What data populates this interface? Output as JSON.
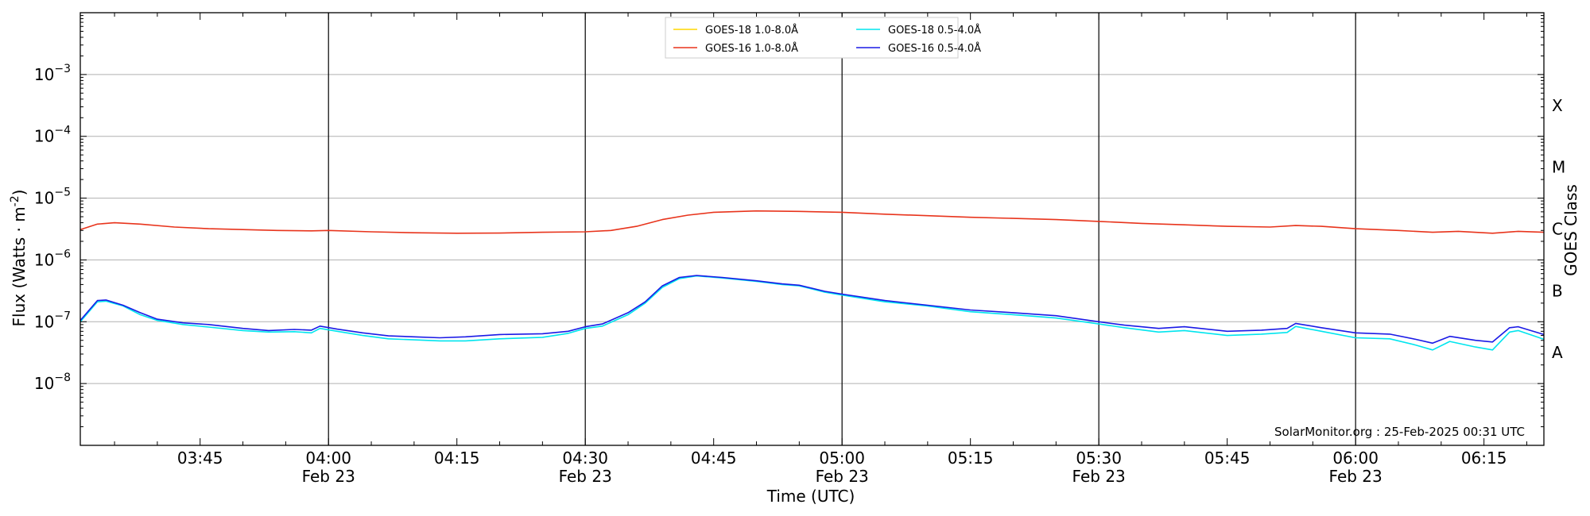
{
  "chart_data": {
    "type": "line",
    "xlabel": "Time (UTC)",
    "ylabel": "Flux (Watts · m",
    "ylabel_sup": "-2",
    "ylabel_end": ")",
    "y2label": "GOES Class",
    "yscale": "log",
    "ylim": [
      1e-09,
      0.01
    ],
    "xlim": [
      "03:31",
      "06:22"
    ],
    "x_ticks": [
      {
        "value": "03:45",
        "label": "03:45",
        "sublabel": ""
      },
      {
        "value": "04:00",
        "label": "04:00",
        "sublabel": "Feb 23"
      },
      {
        "value": "04:15",
        "label": "04:15",
        "sublabel": ""
      },
      {
        "value": "04:30",
        "label": "04:30",
        "sublabel": "Feb 23"
      },
      {
        "value": "04:45",
        "label": "04:45",
        "sublabel": ""
      },
      {
        "value": "05:00",
        "label": "05:00",
        "sublabel": "Feb 23"
      },
      {
        "value": "05:15",
        "label": "05:15",
        "sublabel": ""
      },
      {
        "value": "05:30",
        "label": "05:30",
        "sublabel": "Feb 23"
      },
      {
        "value": "05:45",
        "label": "05:45",
        "sublabel": ""
      },
      {
        "value": "06:00",
        "label": "06:00",
        "sublabel": "Feb 23"
      },
      {
        "value": "06:15",
        "label": "06:15",
        "sublabel": ""
      }
    ],
    "y_ticks": [
      {
        "value": 1e-08,
        "base": "10",
        "exp": "−8"
      },
      {
        "value": 1e-07,
        "base": "10",
        "exp": "−7"
      },
      {
        "value": 1e-06,
        "base": "10",
        "exp": "−6"
      },
      {
        "value": 1e-05,
        "base": "10",
        "exp": "−5"
      },
      {
        "value": 0.0001,
        "base": "10",
        "exp": "−4"
      },
      {
        "value": 0.001,
        "base": "10",
        "exp": "−3"
      }
    ],
    "class_labels": [
      {
        "label": "A",
        "value": 3.16e-08
      },
      {
        "label": "B",
        "value": 3.16e-07
      },
      {
        "label": "C",
        "value": 3.16e-06
      },
      {
        "label": "M",
        "value": 3.16e-05
      },
      {
        "label": "X",
        "value": 0.000316
      }
    ],
    "grid": {
      "horizontal": true,
      "vertical_major": [
        "04:00",
        "04:30",
        "05:00",
        "05:30",
        "06:00"
      ]
    },
    "legend_position": "top-center",
    "annotation": "SolarMonitor.org : 25-Feb-2025 00:31 UTC",
    "series": [
      {
        "name": "GOES-18 1.0-8.0Å",
        "color": "#ffd700",
        "points": []
      },
      {
        "name": "GOES-16 1.0-8.0Å",
        "color": "#e8341c",
        "points": [
          [
            "03:31",
            3.1e-06
          ],
          [
            "03:33",
            3.8e-06
          ],
          [
            "03:35",
            4e-06
          ],
          [
            "03:38",
            3.8e-06
          ],
          [
            "03:42",
            3.4e-06
          ],
          [
            "03:46",
            3.2e-06
          ],
          [
            "03:50",
            3.1e-06
          ],
          [
            "03:54",
            3e-06
          ],
          [
            "03:58",
            2.95e-06
          ],
          [
            "04:00",
            3e-06
          ],
          [
            "04:05",
            2.85e-06
          ],
          [
            "04:10",
            2.75e-06
          ],
          [
            "04:15",
            2.7e-06
          ],
          [
            "04:20",
            2.72e-06
          ],
          [
            "04:25",
            2.8e-06
          ],
          [
            "04:30",
            2.85e-06
          ],
          [
            "04:33",
            3e-06
          ],
          [
            "04:36",
            3.5e-06
          ],
          [
            "04:39",
            4.5e-06
          ],
          [
            "04:42",
            5.3e-06
          ],
          [
            "04:45",
            5.9e-06
          ],
          [
            "04:50",
            6.2e-06
          ],
          [
            "04:55",
            6.1e-06
          ],
          [
            "05:00",
            5.9e-06
          ],
          [
            "05:05",
            5.5e-06
          ],
          [
            "05:10",
            5.2e-06
          ],
          [
            "05:15",
            4.9e-06
          ],
          [
            "05:20",
            4.7e-06
          ],
          [
            "05:25",
            4.5e-06
          ],
          [
            "05:30",
            4.2e-06
          ],
          [
            "05:35",
            3.9e-06
          ],
          [
            "05:40",
            3.7e-06
          ],
          [
            "05:45",
            3.5e-06
          ],
          [
            "05:50",
            3.4e-06
          ],
          [
            "05:53",
            3.6e-06
          ],
          [
            "05:56",
            3.5e-06
          ],
          [
            "06:00",
            3.2e-06
          ],
          [
            "06:05",
            3e-06
          ],
          [
            "06:09",
            2.8e-06
          ],
          [
            "06:12",
            2.9e-06
          ],
          [
            "06:16",
            2.7e-06
          ],
          [
            "06:19",
            2.9e-06
          ],
          [
            "06:22",
            2.8e-06
          ]
        ]
      },
      {
        "name": "GOES-18 0.5-4.0Å",
        "color": "#00e5ee",
        "points": [
          [
            "03:31",
            1e-07
          ],
          [
            "03:33",
            2.1e-07
          ],
          [
            "03:34",
            2.15e-07
          ],
          [
            "03:36",
            1.8e-07
          ],
          [
            "03:38",
            1.3e-07
          ],
          [
            "03:40",
            1.05e-07
          ],
          [
            "03:43",
            9e-08
          ],
          [
            "03:46",
            8.2e-08
          ],
          [
            "03:50",
            7.2e-08
          ],
          [
            "03:53",
            6.8e-08
          ],
          [
            "03:56",
            6.9e-08
          ],
          [
            "03:58",
            6.6e-08
          ],
          [
            "03:59",
            7.8e-08
          ],
          [
            "04:01",
            7e-08
          ],
          [
            "04:04",
            6e-08
          ],
          [
            "04:07",
            5.3e-08
          ],
          [
            "04:10",
            5.1e-08
          ],
          [
            "04:13",
            4.9e-08
          ],
          [
            "04:16",
            4.9e-08
          ],
          [
            "04:20",
            5.3e-08
          ],
          [
            "04:25",
            5.6e-08
          ],
          [
            "04:28",
            6.5e-08
          ],
          [
            "04:30",
            7.8e-08
          ],
          [
            "04:32",
            8.5e-08
          ],
          [
            "04:35",
            1.3e-07
          ],
          [
            "04:37",
            2e-07
          ],
          [
            "04:39",
            3.6e-07
          ],
          [
            "04:41",
            5e-07
          ],
          [
            "04:43",
            5.5e-07
          ],
          [
            "04:46",
            5.1e-07
          ],
          [
            "04:50",
            4.5e-07
          ],
          [
            "04:53",
            4e-07
          ],
          [
            "04:55",
            3.8e-07
          ],
          [
            "04:58",
            3e-07
          ],
          [
            "05:00",
            2.7e-07
          ],
          [
            "05:05",
            2.1e-07
          ],
          [
            "05:10",
            1.8e-07
          ],
          [
            "05:15",
            1.45e-07
          ],
          [
            "05:20",
            1.3e-07
          ],
          [
            "05:25",
            1.15e-07
          ],
          [
            "05:30",
            9.2e-08
          ],
          [
            "05:33",
            8e-08
          ],
          [
            "05:37",
            6.8e-08
          ],
          [
            "05:40",
            7.2e-08
          ],
          [
            "05:45",
            6e-08
          ],
          [
            "05:49",
            6.3e-08
          ],
          [
            "05:52",
            6.7e-08
          ],
          [
            "05:53",
            8.4e-08
          ],
          [
            "05:56",
            7e-08
          ],
          [
            "06:00",
            5.5e-08
          ],
          [
            "06:04",
            5.3e-08
          ],
          [
            "06:07",
            4.2e-08
          ],
          [
            "06:09",
            3.5e-08
          ],
          [
            "06:11",
            4.8e-08
          ],
          [
            "06:14",
            3.9e-08
          ],
          [
            "06:16",
            3.5e-08
          ],
          [
            "06:18",
            6.8e-08
          ],
          [
            "06:19",
            7.2e-08
          ],
          [
            "06:22",
            5.2e-08
          ]
        ]
      },
      {
        "name": "GOES-16 0.5-4.0Å",
        "color": "#1a1ae6",
        "points": [
          [
            "03:31",
            1.05e-07
          ],
          [
            "03:33",
            2.2e-07
          ],
          [
            "03:34",
            2.25e-07
          ],
          [
            "03:36",
            1.85e-07
          ],
          [
            "03:38",
            1.4e-07
          ],
          [
            "03:40",
            1.1e-07
          ],
          [
            "03:43",
            9.6e-08
          ],
          [
            "03:46",
            9e-08
          ],
          [
            "03:50",
            7.8e-08
          ],
          [
            "03:53",
            7.2e-08
          ],
          [
            "03:56",
            7.5e-08
          ],
          [
            "03:58",
            7.3e-08
          ],
          [
            "03:59",
            8.5e-08
          ],
          [
            "04:01",
            7.6e-08
          ],
          [
            "04:04",
            6.6e-08
          ],
          [
            "04:07",
            5.9e-08
          ],
          [
            "04:10",
            5.7e-08
          ],
          [
            "04:13",
            5.5e-08
          ],
          [
            "04:16",
            5.7e-08
          ],
          [
            "04:20",
            6.2e-08
          ],
          [
            "04:25",
            6.4e-08
          ],
          [
            "04:28",
            7e-08
          ],
          [
            "04:30",
            8.3e-08
          ],
          [
            "04:32",
            9.2e-08
          ],
          [
            "04:35",
            1.4e-07
          ],
          [
            "04:37",
            2.1e-07
          ],
          [
            "04:39",
            3.8e-07
          ],
          [
            "04:41",
            5.2e-07
          ],
          [
            "04:43",
            5.6e-07
          ],
          [
            "04:46",
            5.2e-07
          ],
          [
            "04:50",
            4.6e-07
          ],
          [
            "04:53",
            4.1e-07
          ],
          [
            "04:55",
            3.9e-07
          ],
          [
            "04:58",
            3.1e-07
          ],
          [
            "05:00",
            2.8e-07
          ],
          [
            "05:05",
            2.2e-07
          ],
          [
            "05:10",
            1.85e-07
          ],
          [
            "05:15",
            1.55e-07
          ],
          [
            "05:20",
            1.4e-07
          ],
          [
            "05:25",
            1.25e-07
          ],
          [
            "05:30",
            1e-07
          ],
          [
            "05:33",
            8.8e-08
          ],
          [
            "05:37",
            7.8e-08
          ],
          [
            "05:40",
            8.3e-08
          ],
          [
            "05:45",
            7e-08
          ],
          [
            "05:49",
            7.3e-08
          ],
          [
            "05:52",
            7.8e-08
          ],
          [
            "05:53",
            9.4e-08
          ],
          [
            "05:56",
            8e-08
          ],
          [
            "06:00",
            6.6e-08
          ],
          [
            "06:04",
            6.3e-08
          ],
          [
            "06:07",
            5.2e-08
          ],
          [
            "06:09",
            4.5e-08
          ],
          [
            "06:11",
            5.8e-08
          ],
          [
            "06:14",
            5e-08
          ],
          [
            "06:16",
            4.7e-08
          ],
          [
            "06:18",
            8e-08
          ],
          [
            "06:19",
            8.3e-08
          ],
          [
            "06:22",
            6.2e-08
          ]
        ]
      }
    ]
  }
}
